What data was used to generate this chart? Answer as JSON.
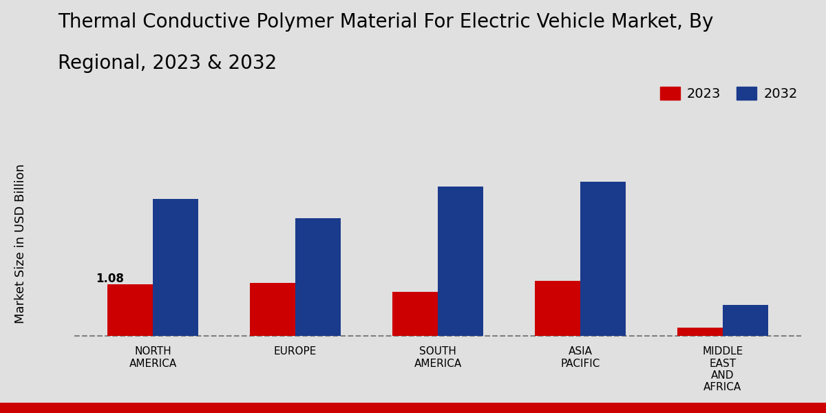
{
  "title_line1": "Thermal Conductive Polymer Material For Electric Vehicle Market, By",
  "title_line2": "Regional, 2023 & 2032",
  "ylabel": "Market Size in USD Billion",
  "categories": [
    "NORTH\nAMERICA",
    "EUROPE",
    "SOUTH\nAMERICA",
    "ASIA\nPACIFIC",
    "MIDDLE\nEAST\nAND\nAFRICA"
  ],
  "values_2023": [
    1.08,
    1.1,
    0.92,
    1.15,
    0.18
  ],
  "values_2032": [
    2.85,
    2.45,
    3.1,
    3.2,
    0.65
  ],
  "color_2023": "#cc0000",
  "color_2032": "#1a3a8c",
  "annotation_label": "1.08",
  "annotation_region_idx": 0,
  "bar_width": 0.32,
  "legend_labels": [
    "2023",
    "2032"
  ],
  "background_color": "#e0e0e0",
  "dashed_line_y": 0.0,
  "title_fontsize": 20,
  "ylabel_fontsize": 13,
  "tick_fontsize": 11,
  "legend_fontsize": 14,
  "bottom_bar_color": "#cc0000",
  "ylim_max": 3.8
}
